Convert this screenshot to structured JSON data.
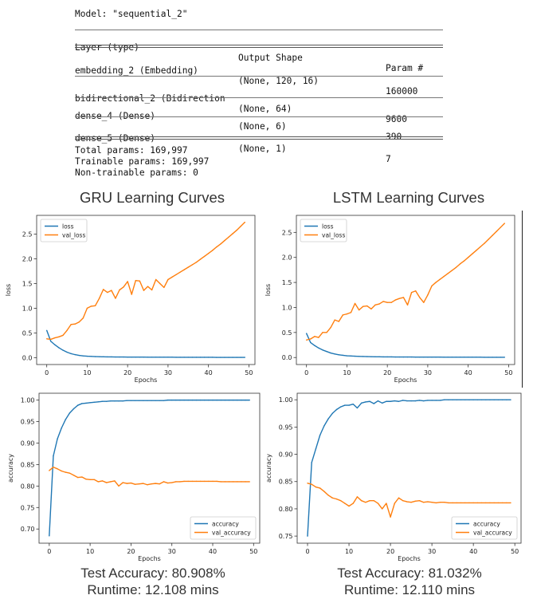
{
  "summary": {
    "model_line": "Model: \"sequential_2\"",
    "headers": [
      "Layer (type)",
      "Output Shape",
      "Param #"
    ],
    "rows": [
      [
        "embedding_2 (Embedding)",
        "(None, 120, 16)",
        "160000"
      ],
      [
        "bidirectional_2 (Bidirection",
        "(None, 64)",
        "9600"
      ],
      [
        "dense_4 (Dense)",
        "(None, 6)",
        "390"
      ],
      [
        "dense_5 (Dense)",
        "(None, 1)",
        "7"
      ]
    ],
    "total_params": "Total params: 169,997",
    "trainable_params": "Trainable params: 169,997",
    "non_trainable_params": "Non-trainable params: 0"
  },
  "headings": {
    "gru": "GRU Learning Curves",
    "lstm": "LSTM Learning Curves"
  },
  "results": {
    "gru_accuracy": "Test Accuracy: 80.908%",
    "gru_runtime": "Runtime: 12.108 mins",
    "lstm_accuracy": "Test Accuracy: 81.032%",
    "lstm_runtime": "Runtime: 12.110 mins"
  },
  "colors": {
    "train": "#1f77b4",
    "val": "#ff7f0e"
  },
  "chart_data": [
    {
      "id": "gru-loss",
      "type": "line",
      "xlabel": "Epochs",
      "ylabel": "loss",
      "xlim": [
        -2.5,
        51.5
      ],
      "ylim": [
        -0.14,
        2.88
      ],
      "xticks": [
        0,
        10,
        20,
        30,
        40,
        50
      ],
      "yticks": [
        0.0,
        0.5,
        1.0,
        1.5,
        2.0,
        2.5
      ],
      "ytick_labels": [
        "0.0",
        "0.5",
        "1.0",
        "1.5",
        "2.0",
        "2.5"
      ],
      "legend": "top-left",
      "series": [
        {
          "name": "loss",
          "color": "#1f77b4",
          "values": [
            0.55,
            0.33,
            0.26,
            0.2,
            0.15,
            0.11,
            0.08,
            0.06,
            0.045,
            0.035,
            0.028,
            0.024,
            0.02,
            0.018,
            0.016,
            0.015,
            0.014,
            0.013,
            0.012,
            0.012,
            0.011,
            0.011,
            0.01,
            0.01,
            0.01,
            0.009,
            0.009,
            0.009,
            0.008,
            0.008,
            0.008,
            0.008,
            0.007,
            0.007,
            0.007,
            0.007,
            0.006,
            0.006,
            0.006,
            0.006,
            0.006,
            0.006,
            0.005,
            0.005,
            0.005,
            0.005,
            0.005,
            0.005,
            0.005,
            0.005
          ]
        },
        {
          "name": "val_loss",
          "color": "#ff7f0e",
          "values": [
            0.38,
            0.37,
            0.4,
            0.42,
            0.45,
            0.55,
            0.67,
            0.68,
            0.72,
            0.8,
            1.0,
            1.04,
            1.05,
            1.2,
            1.38,
            1.32,
            1.36,
            1.2,
            1.37,
            1.43,
            1.54,
            1.28,
            1.56,
            1.55,
            1.36,
            1.44,
            1.37,
            1.58,
            1.5,
            1.42,
            1.58,
            1.63,
            1.68,
            1.73,
            1.78,
            1.83,
            1.88,
            1.93,
            1.99,
            2.05,
            2.11,
            2.17,
            2.24,
            2.3,
            2.37,
            2.44,
            2.51,
            2.58,
            2.66,
            2.74
          ]
        }
      ]
    },
    {
      "id": "lstm-loss",
      "type": "line",
      "xlabel": "Epochs",
      "ylabel": "loss",
      "xlim": [
        -2.5,
        51.5
      ],
      "ylim": [
        -0.14,
        2.84
      ],
      "xticks": [
        0,
        10,
        20,
        30,
        40,
        50
      ],
      "yticks": [
        0.0,
        0.5,
        1.0,
        1.5,
        2.0,
        2.5
      ],
      "ytick_labels": [
        "0.0",
        "0.5",
        "1.0",
        "1.5",
        "2.0",
        "2.5"
      ],
      "legend": "top-left",
      "series": [
        {
          "name": "loss",
          "color": "#1f77b4",
          "values": [
            0.48,
            0.3,
            0.24,
            0.19,
            0.15,
            0.12,
            0.09,
            0.07,
            0.055,
            0.045,
            0.035,
            0.03,
            0.026,
            0.023,
            0.02,
            0.018,
            0.016,
            0.015,
            0.014,
            0.013,
            0.012,
            0.012,
            0.011,
            0.011,
            0.01,
            0.01,
            0.01,
            0.009,
            0.009,
            0.009,
            0.008,
            0.008,
            0.008,
            0.008,
            0.007,
            0.007,
            0.007,
            0.007,
            0.006,
            0.006,
            0.006,
            0.006,
            0.006,
            0.006,
            0.005,
            0.005,
            0.005,
            0.005,
            0.005,
            0.005
          ]
        },
        {
          "name": "val_loss",
          "color": "#ff7f0e",
          "values": [
            0.35,
            0.37,
            0.42,
            0.4,
            0.5,
            0.5,
            0.6,
            0.75,
            0.72,
            0.85,
            0.87,
            0.9,
            1.08,
            0.95,
            1.02,
            1.03,
            0.97,
            1.05,
            1.07,
            1.12,
            1.1,
            1.1,
            1.15,
            1.18,
            1.2,
            1.05,
            1.3,
            1.33,
            1.2,
            1.1,
            1.25,
            1.43,
            1.5,
            1.56,
            1.62,
            1.68,
            1.74,
            1.8,
            1.87,
            1.93,
            2.0,
            2.07,
            2.14,
            2.21,
            2.28,
            2.36,
            2.44,
            2.52,
            2.6,
            2.68
          ]
        }
      ]
    },
    {
      "id": "gru-accuracy",
      "type": "line",
      "xlabel": "Epochs",
      "ylabel": "accuracy",
      "xlim": [
        -2.5,
        51.5
      ],
      "ylim": [
        0.667,
        1.016
      ],
      "xticks": [
        0,
        10,
        20,
        30,
        40,
        50
      ],
      "yticks": [
        0.7,
        0.75,
        0.8,
        0.85,
        0.9,
        0.95,
        1.0
      ],
      "ytick_labels": [
        "0.70",
        "0.75",
        "0.80",
        "0.85",
        "0.90",
        "0.95",
        "1.00"
      ],
      "legend": "bottom-right",
      "series": [
        {
          "name": "accuracy",
          "color": "#1f77b4",
          "values": [
            0.684,
            0.87,
            0.91,
            0.935,
            0.955,
            0.97,
            0.98,
            0.988,
            0.992,
            0.993,
            0.994,
            0.995,
            0.996,
            0.997,
            0.997,
            0.998,
            0.998,
            0.998,
            0.998,
            0.999,
            0.999,
            0.999,
            0.999,
            0.999,
            0.999,
            0.999,
            0.999,
            0.999,
            0.999,
            1.0,
            1.0,
            1.0,
            1.0,
            1.0,
            1.0,
            1.0,
            1.0,
            1.0,
            1.0,
            1.0,
            1.0,
            1.0,
            1.0,
            1.0,
            1.0,
            1.0,
            1.0,
            1.0,
            1.0,
            1.0
          ]
        },
        {
          "name": "val_accuracy",
          "color": "#ff7f0e",
          "values": [
            0.836,
            0.844,
            0.84,
            0.835,
            0.832,
            0.83,
            0.825,
            0.82,
            0.821,
            0.816,
            0.815,
            0.815,
            0.81,
            0.812,
            0.808,
            0.81,
            0.812,
            0.8,
            0.808,
            0.806,
            0.807,
            0.804,
            0.805,
            0.806,
            0.803,
            0.805,
            0.806,
            0.805,
            0.81,
            0.807,
            0.808,
            0.81,
            0.81,
            0.811,
            0.811,
            0.811,
            0.811,
            0.811,
            0.811,
            0.811,
            0.811,
            0.811,
            0.81,
            0.81,
            0.81,
            0.81,
            0.81,
            0.81,
            0.81,
            0.81
          ]
        }
      ]
    },
    {
      "id": "lstm-accuracy",
      "type": "line",
      "xlabel": "Epochs",
      "ylabel": "accuracy",
      "xlim": [
        -2.5,
        51.5
      ],
      "ylim": [
        0.737,
        1.012
      ],
      "xticks": [
        0,
        10,
        20,
        30,
        40,
        50
      ],
      "yticks": [
        0.75,
        0.8,
        0.85,
        0.9,
        0.95,
        1.0
      ],
      "ytick_labels": [
        "0.75",
        "0.80",
        "0.85",
        "0.90",
        "0.95",
        "1.00"
      ],
      "legend": "bottom-right",
      "series": [
        {
          "name": "accuracy",
          "color": "#1f77b4",
          "values": [
            0.75,
            0.885,
            0.91,
            0.935,
            0.952,
            0.965,
            0.975,
            0.982,
            0.987,
            0.99,
            0.99,
            0.992,
            0.985,
            0.994,
            0.996,
            0.997,
            0.993,
            0.998,
            0.994,
            0.997,
            0.997,
            0.998,
            0.997,
            0.999,
            0.998,
            0.998,
            0.998,
            0.999,
            0.998,
            0.999,
            0.999,
            0.999,
            0.999,
            1.0,
            1.0,
            1.0,
            1.0,
            1.0,
            1.0,
            1.0,
            1.0,
            1.0,
            1.0,
            1.0,
            1.0,
            1.0,
            1.0,
            1.0,
            1.0,
            1.0
          ]
        },
        {
          "name": "val_accuracy",
          "color": "#ff7f0e",
          "values": [
            0.847,
            0.845,
            0.84,
            0.838,
            0.832,
            0.825,
            0.82,
            0.818,
            0.815,
            0.81,
            0.805,
            0.81,
            0.822,
            0.815,
            0.812,
            0.815,
            0.815,
            0.81,
            0.8,
            0.81,
            0.785,
            0.81,
            0.82,
            0.815,
            0.813,
            0.812,
            0.814,
            0.815,
            0.812,
            0.813,
            0.812,
            0.811,
            0.812,
            0.812,
            0.811,
            0.811,
            0.811,
            0.811,
            0.811,
            0.811,
            0.811,
            0.811,
            0.811,
            0.811,
            0.811,
            0.811,
            0.811,
            0.811,
            0.811,
            0.811
          ]
        }
      ]
    }
  ]
}
